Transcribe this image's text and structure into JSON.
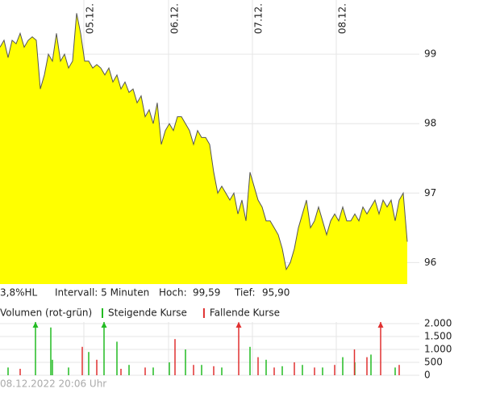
{
  "chart_data": {
    "type": "area",
    "x": [
      0,
      1,
      2,
      3,
      4,
      5,
      6,
      7,
      8,
      9,
      10,
      11,
      12,
      13,
      14,
      15,
      16,
      17,
      18,
      19,
      20,
      21,
      22,
      23,
      24,
      25,
      26,
      27,
      28,
      29,
      30,
      31,
      32,
      33,
      34,
      35,
      36,
      37,
      38,
      39,
      40,
      41,
      42,
      43,
      44,
      45,
      46,
      47,
      48,
      49,
      50,
      51,
      52,
      53,
      54,
      55,
      56,
      57,
      58,
      59,
      60,
      61,
      62,
      63,
      64,
      65,
      66,
      67,
      68,
      69,
      70,
      71,
      72,
      73,
      74,
      75,
      76,
      77,
      78,
      79,
      80,
      81,
      82,
      83,
      84,
      85,
      86,
      87,
      88,
      89,
      90,
      91,
      92,
      93,
      94,
      95,
      96,
      97,
      98,
      99,
      100,
      101
    ],
    "series": [
      {
        "color": "#ffff00",
        "values": [
          99.1,
          99.2,
          98.95,
          99.2,
          99.15,
          99.3,
          99.1,
          99.2,
          99.25,
          99.2,
          98.5,
          98.7,
          99.0,
          98.9,
          99.3,
          98.9,
          99.0,
          98.8,
          98.9,
          99.59,
          99.3,
          98.9,
          98.9,
          98.8,
          98.85,
          98.8,
          98.7,
          98.8,
          98.6,
          98.7,
          98.5,
          98.6,
          98.45,
          98.5,
          98.3,
          98.4,
          98.1,
          98.2,
          98.0,
          98.3,
          97.7,
          97.9,
          98.0,
          97.9,
          98.1,
          98.1,
          98.0,
          97.9,
          97.7,
          97.9,
          97.8,
          97.8,
          97.7,
          97.3,
          97.0,
          97.1,
          97.0,
          96.9,
          97.0,
          96.7,
          96.9,
          96.6,
          97.3,
          97.1,
          96.9,
          96.8,
          96.6,
          96.6,
          96.5,
          96.4,
          96.2,
          95.9,
          96.0,
          96.2,
          96.5,
          96.7,
          96.9,
          96.5,
          96.6,
          96.8,
          96.6,
          96.4,
          96.6,
          96.7,
          96.6,
          96.8,
          96.6,
          96.6,
          96.7,
          96.6,
          96.8,
          96.7,
          96.8,
          96.9,
          96.7,
          96.9,
          96.8,
          96.9,
          96.6,
          96.9,
          97.0,
          96.3
        ]
      }
    ],
    "xlim": [
      0,
      104
    ],
    "xticks": [
      {
        "value": 20.8,
        "label": "05.12."
      },
      {
        "value": 41.8,
        "label": "06.12."
      },
      {
        "value": 62.6,
        "label": "07.12."
      },
      {
        "value": 83.4,
        "label": "08.12."
      }
    ],
    "ylim": [
      95.69,
      99.78
    ],
    "yticks": [
      96,
      97,
      98,
      99
    ],
    "grid": true,
    "info": [
      "3,8%HL",
      "Intervall: 5 Minuten",
      "Hoch:",
      "99,59",
      "Tief:",
      "95,90"
    ],
    "volume": {
      "label": "Volumen (rot-grün)",
      "series": [
        {
          "name": "Steigende Kurse",
          "color": "#22bb22",
          "x": [
            2,
            8.8,
            12.6,
            13,
            17,
            22,
            25.8,
            29,
            32,
            38,
            42,
            46,
            50,
            55,
            62,
            66,
            70,
            75,
            80,
            85,
            88,
            92,
            98
          ],
          "values": [
            300,
            2600,
            1850,
            600,
            300,
            900,
            2400,
            1300,
            400,
            300,
            500,
            1000,
            400,
            300,
            1100,
            600,
            350,
            400,
            300,
            700,
            500,
            800,
            300
          ]
        },
        {
          "name": "Fallende Kurse",
          "color": "#e03030",
          "x": [
            5,
            20.4,
            24,
            30,
            36,
            43.4,
            48,
            53,
            59.2,
            64,
            68,
            73,
            78,
            83,
            87.9,
            91,
            94.4,
            99
          ],
          "values": [
            250,
            1100,
            600,
            250,
            300,
            1400,
            400,
            350,
            2050,
            700,
            300,
            500,
            300,
            400,
            1000,
            700,
            2300,
            400
          ]
        }
      ],
      "ylim": [
        0,
        2000
      ],
      "yticks": [
        0,
        {
          "value": 500,
          "label": "500"
        },
        {
          "value": 1000,
          "label": "1.000"
        },
        {
          "value": 1500,
          "label": "1.500"
        },
        {
          "value": 2000,
          "label": "2.000"
        }
      ]
    },
    "footer": "08.12.2022 20:06 Uhr"
  }
}
